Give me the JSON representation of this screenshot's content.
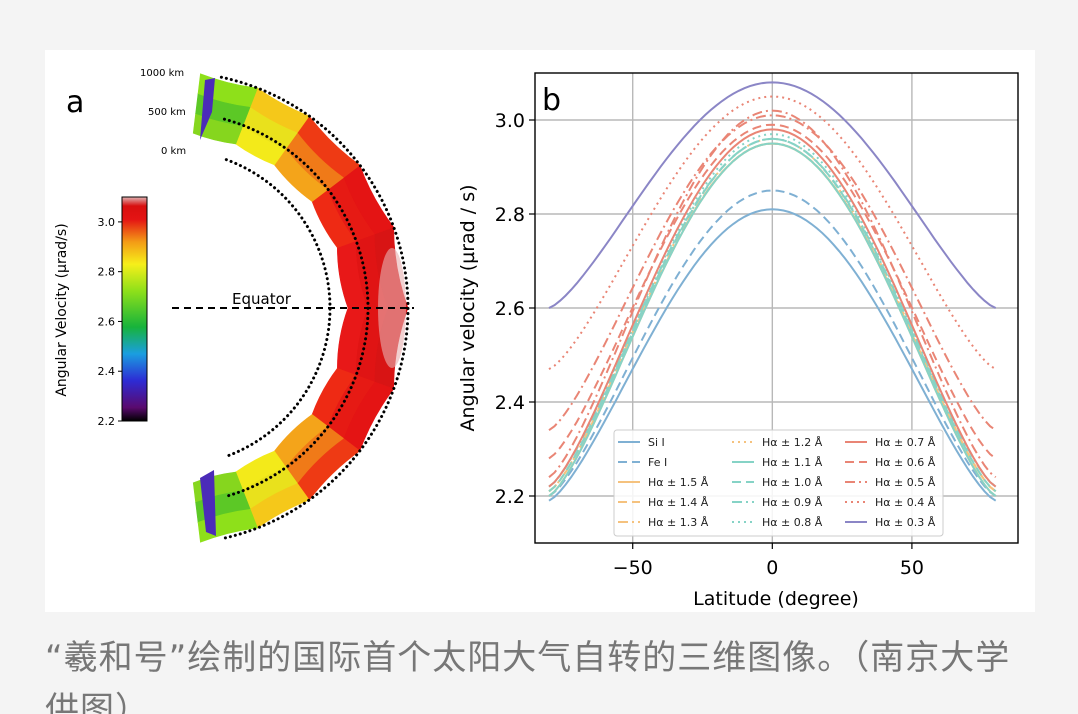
{
  "caption": "“羲和号”绘制的国际首个太阳大气自转的三维图像。（南京大学供图）",
  "chart_data": [
    {
      "type": "heatmap",
      "panel_label": "a",
      "colorbar_label": "Angular Velocity (µrad/s)",
      "colorbar_ticks": [
        "2.2",
        "2.4",
        "2.6",
        "2.8",
        "3.0"
      ],
      "colorbar_range": [
        2.2,
        3.1
      ],
      "height_labels": [
        "1000 km",
        "500 km",
        "0 km"
      ],
      "equator_label": "Equator"
    },
    {
      "type": "line",
      "panel_label": "b",
      "xlabel": "Latitude (degree)",
      "ylabel": "Angular velocity (µrad / s)",
      "xlim": [
        -85,
        88
      ],
      "ylim": [
        2.1,
        3.1
      ],
      "xticks": [
        -50,
        0,
        50
      ],
      "xtick_labels": [
        "−50",
        "0",
        "50"
      ],
      "yticks": [
        2.2,
        2.4,
        2.6,
        2.8,
        3.0
      ],
      "ytick_labels": [
        "2.2",
        "2.4",
        "2.6",
        "2.8",
        "3.0"
      ],
      "grid": true,
      "legend_position": "lower-center",
      "series": [
        {
          "name": "Si I",
          "color": "#7fb0d3",
          "dash": "solid",
          "edge": 2.19,
          "center": 2.81
        },
        {
          "name": "Fe I",
          "color": "#7fb0d3",
          "dash": "dashed",
          "edge": 2.2,
          "center": 2.85
        },
        {
          "name": "Hα ± 1.5 Å",
          "color": "#f5c27e",
          "dash": "solid",
          "edge": 2.2,
          "center": 2.95
        },
        {
          "name": "Hα ± 1.4 Å",
          "color": "#f5c27e",
          "dash": "dashed",
          "edge": 2.21,
          "center": 2.95
        },
        {
          "name": "Hα ± 1.3 Å",
          "color": "#f5c27e",
          "dash": "dashdot",
          "edge": 2.21,
          "center": 2.95
        },
        {
          "name": "Hα ± 1.2 Å",
          "color": "#f5c27e",
          "dash": "dotted",
          "edge": 2.21,
          "center": 2.96
        },
        {
          "name": "Hα ± 1.1 Å",
          "color": "#86d3c6",
          "dash": "solid",
          "edge": 2.2,
          "center": 2.95
        },
        {
          "name": "Hα ± 1.0 Å",
          "color": "#86d3c6",
          "dash": "dashed",
          "edge": 2.21,
          "center": 2.96
        },
        {
          "name": "Hα ± 0.9 Å",
          "color": "#86d3c6",
          "dash": "dashdot",
          "edge": 2.22,
          "center": 2.96
        },
        {
          "name": "Hα ± 0.8 Å",
          "color": "#86d3c6",
          "dash": "dotted",
          "edge": 2.22,
          "center": 2.97
        },
        {
          "name": "Hα ± 0.7 Å",
          "color": "#e98575",
          "dash": "solid",
          "edge": 2.22,
          "center": 2.98
        },
        {
          "name": "Hα ± 0.6 Å",
          "color": "#e98575",
          "dash": "dashed",
          "edge": 2.28,
          "center": 2.99
        },
        {
          "name": "Hα ± 0.5 Å",
          "color": "#e98575",
          "dash": "dashdot",
          "edge": 2.34,
          "center": 3.01
        },
        {
          "name": "Hα ± 0.4 Å",
          "color": "#e98575",
          "dash": "dotted",
          "edge": 2.47,
          "center": 3.05
        },
        {
          "name": "Hα ± 0.3 Å",
          "color": "#8b86c6",
          "dash": "solid",
          "edge": 2.6,
          "center": 3.08
        },
        {
          "name": "",
          "color": "#e98575",
          "dash": "dashdot",
          "edge": 2.24,
          "center": 3.02
        }
      ]
    }
  ]
}
